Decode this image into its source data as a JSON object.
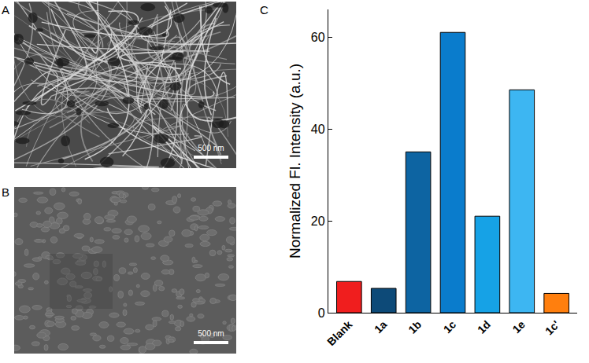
{
  "panel_labels": [
    "A",
    "B",
    "C"
  ],
  "scale_bars": [
    "500 nm",
    "500 nm"
  ],
  "chart_data": {
    "type": "bar",
    "y_label": "Normalized Fl. Intensity (a.u.)",
    "categories": [
      "Blank",
      "1a",
      "1b",
      "1c",
      "1d",
      "1e",
      "1c'"
    ],
    "values": [
      6.8,
      5.3,
      35,
      61,
      21,
      48.5,
      4.2
    ],
    "colors": [
      "#f01e1e",
      "#0d4a78",
      "#0d64a2",
      "#0a7ccc",
      "#16a2e6",
      "#3db6f2",
      "#ff7f0e"
    ],
    "ylim": [
      0,
      66
    ],
    "yticks": [
      0,
      20,
      40,
      60
    ],
    "grid": false
  }
}
